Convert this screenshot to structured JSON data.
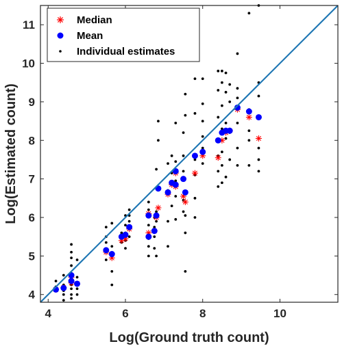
{
  "chart_data": {
    "type": "scatter",
    "xlabel": "Log(Ground truth count)",
    "ylabel": "Log(Estimated count)",
    "xlim": [
      3.8,
      11.5
    ],
    "ylim": [
      3.8,
      11.5
    ],
    "xticks": [
      "4",
      "6",
      "8",
      "10"
    ],
    "yticks": [
      "4",
      "5",
      "6",
      "7",
      "8",
      "9",
      "10",
      "11"
    ],
    "grid": false,
    "legend_position": "top-left",
    "identity_line": {
      "color": "#1f77b4",
      "from": [
        3.8,
        3.8
      ],
      "to": [
        11.5,
        11.5
      ]
    },
    "series": [
      {
        "name": "Median",
        "marker": "asterisk",
        "color": "#ff0000",
        "points": [
          [
            4.2,
            4.13
          ],
          [
            4.4,
            4.18
          ],
          [
            4.6,
            4.3
          ],
          [
            4.6,
            4.45
          ],
          [
            4.75,
            4.28
          ],
          [
            5.5,
            5.1
          ],
          [
            5.65,
            4.95
          ],
          [
            5.9,
            5.4
          ],
          [
            6.0,
            5.45
          ],
          [
            6.1,
            5.7
          ],
          [
            6.6,
            5.6
          ],
          [
            6.6,
            6.1
          ],
          [
            6.75,
            5.65
          ],
          [
            6.8,
            6.0
          ],
          [
            6.85,
            6.25
          ],
          [
            7.1,
            6.6
          ],
          [
            7.2,
            6.85
          ],
          [
            7.3,
            7.15
          ],
          [
            7.3,
            6.8
          ],
          [
            7.5,
            6.55
          ],
          [
            7.55,
            6.4
          ],
          [
            7.8,
            7.15
          ],
          [
            8.0,
            7.6
          ],
          [
            8.4,
            7.55
          ],
          [
            8.5,
            8.0
          ],
          [
            8.6,
            8.2
          ],
          [
            8.7,
            8.25
          ],
          [
            8.9,
            8.8
          ],
          [
            9.2,
            8.6
          ],
          [
            9.45,
            8.05
          ]
        ]
      },
      {
        "name": "Mean",
        "marker": "dot",
        "color": "#0000ff",
        "points": [
          [
            4.2,
            4.13
          ],
          [
            4.4,
            4.17
          ],
          [
            4.6,
            4.35
          ],
          [
            4.6,
            4.5
          ],
          [
            4.75,
            4.28
          ],
          [
            5.5,
            5.15
          ],
          [
            5.65,
            5.05
          ],
          [
            5.9,
            5.5
          ],
          [
            6.0,
            5.55
          ],
          [
            6.1,
            5.75
          ],
          [
            6.6,
            5.5
          ],
          [
            6.6,
            6.05
          ],
          [
            6.75,
            5.65
          ],
          [
            6.8,
            6.05
          ],
          [
            6.85,
            6.75
          ],
          [
            7.1,
            6.65
          ],
          [
            7.2,
            6.9
          ],
          [
            7.3,
            7.2
          ],
          [
            7.3,
            6.85
          ],
          [
            7.5,
            7.0
          ],
          [
            7.55,
            6.65
          ],
          [
            7.8,
            7.6
          ],
          [
            8.0,
            7.7
          ],
          [
            8.4,
            8.0
          ],
          [
            8.5,
            8.2
          ],
          [
            8.6,
            8.25
          ],
          [
            8.7,
            8.25
          ],
          [
            8.9,
            8.85
          ],
          [
            9.2,
            8.75
          ],
          [
            9.45,
            8.6
          ]
        ]
      },
      {
        "name": "Individual estimates",
        "marker": "point",
        "color": "#000000",
        "points": [
          [
            4.2,
            4.1
          ],
          [
            4.2,
            4.2
          ],
          [
            4.2,
            4.35
          ],
          [
            4.4,
            3.85
          ],
          [
            4.4,
            4.0
          ],
          [
            4.4,
            4.1
          ],
          [
            4.4,
            4.25
          ],
          [
            4.4,
            4.5
          ],
          [
            4.6,
            3.9
          ],
          [
            4.6,
            4.0
          ],
          [
            4.6,
            4.15
          ],
          [
            4.6,
            4.25
          ],
          [
            4.6,
            4.4
          ],
          [
            4.6,
            4.55
          ],
          [
            4.6,
            4.75
          ],
          [
            4.6,
            4.95
          ],
          [
            4.6,
            5.1
          ],
          [
            4.6,
            5.3
          ],
          [
            4.75,
            4.0
          ],
          [
            4.75,
            4.15
          ],
          [
            4.75,
            4.3
          ],
          [
            4.75,
            4.45
          ],
          [
            4.75,
            4.9
          ],
          [
            5.5,
            4.9
          ],
          [
            5.5,
            5.1
          ],
          [
            5.5,
            5.35
          ],
          [
            5.5,
            5.5
          ],
          [
            5.5,
            5.75
          ],
          [
            5.65,
            4.25
          ],
          [
            5.65,
            4.6
          ],
          [
            5.65,
            5.0
          ],
          [
            5.65,
            5.25
          ],
          [
            5.65,
            5.85
          ],
          [
            5.9,
            5.35
          ],
          [
            5.9,
            5.5
          ],
          [
            5.9,
            5.6
          ],
          [
            6.0,
            5.2
          ],
          [
            6.0,
            5.4
          ],
          [
            6.0,
            5.6
          ],
          [
            6.0,
            5.8
          ],
          [
            6.0,
            6.05
          ],
          [
            6.1,
            5.5
          ],
          [
            6.1,
            5.7
          ],
          [
            6.1,
            5.9
          ],
          [
            6.1,
            6.05
          ],
          [
            6.1,
            6.2
          ],
          [
            6.6,
            5.0
          ],
          [
            6.6,
            5.25
          ],
          [
            6.6,
            5.45
          ],
          [
            6.6,
            5.8
          ],
          [
            6.6,
            6.2
          ],
          [
            6.6,
            6.4
          ],
          [
            6.75,
            5.2
          ],
          [
            6.75,
            5.5
          ],
          [
            6.75,
            5.75
          ],
          [
            6.75,
            6.0
          ],
          [
            6.8,
            5.0
          ],
          [
            6.8,
            5.9
          ],
          [
            6.8,
            6.15
          ],
          [
            6.8,
            7.25
          ],
          [
            6.85,
            8.0
          ],
          [
            6.85,
            8.5
          ],
          [
            7.1,
            5.25
          ],
          [
            7.1,
            5.9
          ],
          [
            7.1,
            6.7
          ],
          [
            7.1,
            7.4
          ],
          [
            7.2,
            6.3
          ],
          [
            7.2,
            6.9
          ],
          [
            7.2,
            7.15
          ],
          [
            7.2,
            7.6
          ],
          [
            7.3,
            5.95
          ],
          [
            7.3,
            6.55
          ],
          [
            7.3,
            6.95
          ],
          [
            7.3,
            7.45
          ],
          [
            7.3,
            8.45
          ],
          [
            7.5,
            6.15
          ],
          [
            7.5,
            6.45
          ],
          [
            7.5,
            7.2
          ],
          [
            7.5,
            7.6
          ],
          [
            7.5,
            8.2
          ],
          [
            7.55,
            4.6
          ],
          [
            7.55,
            5.6
          ],
          [
            7.55,
            6.05
          ],
          [
            7.55,
            8.65
          ],
          [
            7.55,
            9.2
          ],
          [
            7.8,
            6.0
          ],
          [
            7.8,
            6.5
          ],
          [
            7.8,
            7.1
          ],
          [
            7.8,
            7.5
          ],
          [
            7.8,
            8.7
          ],
          [
            7.8,
            9.6
          ],
          [
            8.0,
            7.4
          ],
          [
            8.0,
            7.8
          ],
          [
            8.0,
            8.1
          ],
          [
            8.0,
            8.5
          ],
          [
            8.0,
            8.95
          ],
          [
            8.0,
            9.6
          ],
          [
            8.4,
            6.8
          ],
          [
            8.4,
            7.2
          ],
          [
            8.4,
            7.6
          ],
          [
            8.4,
            8.0
          ],
          [
            8.4,
            8.6
          ],
          [
            8.4,
            9.3
          ],
          [
            8.4,
            9.8
          ],
          [
            8.5,
            6.9
          ],
          [
            8.5,
            7.35
          ],
          [
            8.5,
            7.7
          ],
          [
            8.5,
            8.3
          ],
          [
            8.5,
            8.9
          ],
          [
            8.5,
            9.5
          ],
          [
            8.5,
            9.8
          ],
          [
            8.6,
            7.05
          ],
          [
            8.6,
            8.05
          ],
          [
            8.6,
            8.45
          ],
          [
            8.6,
            9.25
          ],
          [
            8.6,
            9.75
          ],
          [
            8.7,
            7.5
          ],
          [
            8.7,
            8.2
          ],
          [
            8.7,
            9.0
          ],
          [
            8.7,
            9.45
          ],
          [
            8.9,
            7.35
          ],
          [
            8.9,
            7.8
          ],
          [
            8.9,
            8.45
          ],
          [
            8.9,
            8.8
          ],
          [
            8.9,
            9.1
          ],
          [
            8.9,
            9.35
          ],
          [
            8.9,
            10.25
          ],
          [
            9.2,
            7.35
          ],
          [
            9.2,
            8.0
          ],
          [
            9.2,
            8.25
          ],
          [
            9.2,
            8.8
          ],
          [
            9.2,
            11.3
          ],
          [
            9.45,
            7.2
          ],
          [
            9.45,
            7.5
          ],
          [
            9.45,
            7.8
          ],
          [
            9.45,
            9.15
          ],
          [
            9.45,
            9.5
          ],
          [
            9.45,
            11.5
          ]
        ]
      }
    ]
  }
}
